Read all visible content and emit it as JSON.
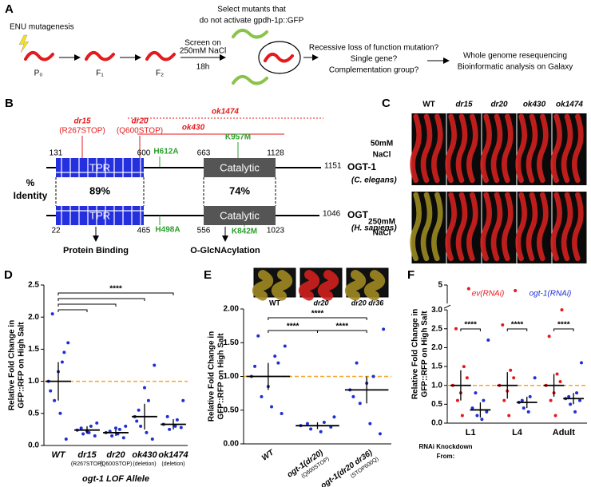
{
  "panel_a": {
    "label": "A",
    "mutagen": "ENU mutagenesis",
    "generations": [
      "P₀",
      "F₁",
      "F₂"
    ],
    "screen": [
      "Screen on",
      "250mM NaCl"
    ],
    "duration": "18h",
    "select": [
      "Select mutants that",
      "do not activate gpdh-1p::GFP"
    ],
    "questions": [
      "Recessive loss of function mutation?",
      "Single gene?",
      "Complementation group?"
    ],
    "analysis": [
      "Whole genome resequencing",
      "Bioinformatic analysis on Galaxy"
    ]
  },
  "panel_b": {
    "label": "B",
    "deletions": [
      "ok1474",
      "ok430"
    ],
    "point_alleles": [
      {
        "name": "dr15",
        "change": "(R267STOP)"
      },
      {
        "name": "dr20",
        "change": "(Q600STOP)"
      }
    ],
    "ce_mutations": [
      "H612A",
      "K957M"
    ],
    "hs_mutations": [
      "H498A",
      "K842M"
    ],
    "domains": [
      "TPR",
      "Catalytic"
    ],
    "ce_positions": [
      131,
      600,
      663,
      1128,
      1151
    ],
    "hs_positions": [
      22,
      465,
      556,
      1023,
      1046
    ],
    "ce_protein": {
      "name": "OGT-1",
      "species": "(C. elegans)"
    },
    "hs_protein": {
      "name": "OGT",
      "species": "(H. sapiens)"
    },
    "identity_label": [
      "%",
      "Identity"
    ],
    "identities": [
      "89%",
      "74%"
    ],
    "functions": [
      "Protein Binding",
      "O-GlcNAcylation"
    ]
  },
  "panel_c": {
    "label": "C",
    "columns": [
      "WT",
      "dr15",
      "dr20",
      "ok430",
      "ok1474"
    ],
    "rows": [
      [
        "50mM",
        "NaCl"
      ],
      [
        "250mM",
        "NaCl"
      ]
    ]
  },
  "chart_data": [
    {
      "type": "scatter",
      "panel_label": "D",
      "y_label": [
        "Relative Fold Change in",
        "GFP::RFP on High Salt"
      ],
      "x_label": "ogt-1 LOF Allele",
      "categories": [
        "WT",
        "dr15",
        "dr20",
        "ok430",
        "ok1474"
      ],
      "category_sublabels": [
        null,
        "(R267STOP)",
        "(Q600STOP)",
        "(deletion)",
        "(deletion)"
      ],
      "ylim": [
        0,
        2.5
      ],
      "yticks": [
        {
          "value": 0,
          "label": "0.0"
        },
        {
          "value": 0.5,
          "label": "0.5"
        },
        {
          "value": 1,
          "label": "1.0"
        },
        {
          "value": 1.5,
          "label": "1.5"
        },
        {
          "value": 2,
          "label": "2.0"
        },
        {
          "value": 2.5,
          "label": "2.5"
        }
      ],
      "reference_line": 1,
      "reference_color": "#f5a623",
      "significance_labels": [
        "****"
      ],
      "series": [
        {
          "color": "#1f2fd6",
          "groups": [
            {
              "points": [
                1.0,
                1.3,
                0.7,
                1.6,
                0.5,
                2.05,
                0.1,
                1.15,
                0.85,
                1.45
              ],
              "mean": 1.0,
              "sd": 0.3
            },
            {
              "points": [
                0.24,
                0.3,
                0.18,
                0.35,
                0.2,
                0.27,
                0.15,
                0.22
              ],
              "mean": 0.24,
              "sd": 0.06
            },
            {
              "points": [
                0.2,
                0.25,
                0.15,
                0.3,
                0.18,
                0.22,
                0.12,
                0.27
              ],
              "mean": 0.2,
              "sd": 0.05
            },
            {
              "points": [
                0.45,
                0.7,
                0.3,
                1.25,
                0.2,
                0.55,
                0.1,
                0.9,
                0.38
              ],
              "mean": 0.45,
              "sd": 0.2
            },
            {
              "points": [
                0.33,
                0.4,
                0.25,
                0.7,
                0.3,
                0.45,
                0.28
              ],
              "mean": 0.33,
              "sd": 0.08
            }
          ]
        }
      ]
    },
    {
      "type": "scatter",
      "panel_label": "E",
      "y_label": [
        "Relative Fold Change in",
        "GFP::RFP on High Salt"
      ],
      "inset_labels": [
        "WT",
        "dr20",
        "dr20 dr36"
      ],
      "categories": [
        "WT",
        "ogt-1(dr20)",
        "ogt-1(dr20 dr36)"
      ],
      "category_sublabels": [
        null,
        "(Q600STOP)",
        "(STOP600Q)"
      ],
      "ylim": [
        0,
        2
      ],
      "yticks": [
        {
          "value": 0,
          "label": "0.00"
        },
        {
          "value": 0.5,
          "label": "0.50"
        },
        {
          "value": 1,
          "label": "1.00"
        },
        {
          "value": 1.5,
          "label": "1.50"
        },
        {
          "value": 2,
          "label": "2.00"
        }
      ],
      "reference_line": 1,
      "reference_color": "#f5a623",
      "significance_labels": [
        "****",
        "****",
        "****"
      ],
      "series": [
        {
          "color": "#1f2fd6",
          "groups": [
            {
              "points": [
                1.0,
                1.3,
                0.7,
                1.45,
                0.55,
                1.6,
                0.45,
                0.85,
                1.15,
                1.2
              ],
              "mean": 1.0,
              "sd": 0.2
            },
            {
              "points": [
                0.27,
                0.32,
                0.22,
                0.4,
                0.18,
                0.3,
                0.25
              ],
              "mean": 0.27,
              "sd": 0.05
            },
            {
              "points": [
                0.8,
                1.0,
                0.6,
                1.7,
                0.3,
                1.2,
                0.15,
                0.9,
                0.7
              ],
              "mean": 0.8,
              "sd": 0.2
            }
          ]
        }
      ]
    },
    {
      "type": "scatter",
      "panel_label": "F",
      "y_label": [
        "Relative Fold Change in",
        "GFP::RFP on High Salt"
      ],
      "x_label": [
        "RNAi Knockdown",
        "From:"
      ],
      "categories": [
        "L1",
        "L4",
        "Adult"
      ],
      "ylim": [
        0,
        5
      ],
      "broken_axis": true,
      "yticks": [
        {
          "value": 0,
          "label": "0.0"
        },
        {
          "value": 0.5,
          "label": "0.5"
        },
        {
          "value": 1,
          "label": "1.0"
        },
        {
          "value": 1.5,
          "label": "1.5"
        },
        {
          "value": 2,
          "label": "2.0"
        },
        {
          "value": 2.5,
          "label": "2.5"
        },
        {
          "value": 3,
          "label": "3.0"
        },
        5
      ],
      "reference_line": 1,
      "reference_color": "#f5a623",
      "significance_labels": [
        "****",
        "****",
        "****"
      ],
      "series": [
        {
          "name": "ev(RNAi)",
          "color": "#e41a1c",
          "groups": [
            {
              "points": [
                1.0,
                1.5,
                0.6,
                4.6,
                0.2,
                2.5,
                1.2,
                0.8
              ],
              "mean": 1.0,
              "sd": 0.4
            },
            {
              "points": [
                1.0,
                1.4,
                0.6,
                4.4,
                0.2,
                2.6,
                1.2,
                0.85
              ],
              "mean": 1.0,
              "sd": 0.35
            },
            {
              "points": [
                1.0,
                1.3,
                0.6,
                3.0,
                0.2,
                2.3,
                1.1,
                0.8
              ],
              "mean": 1.0,
              "sd": 0.3
            }
          ]
        },
        {
          "name": "ogt-1(RNAi)",
          "color": "#1f2fd6",
          "groups": [
            {
              "points": [
                0.4,
                0.6,
                0.2,
                2.2,
                0.1,
                0.8,
                0.3
              ],
              "mean": 0.35,
              "sd": 0.2
            },
            {
              "points": [
                0.55,
                0.7,
                0.4,
                1.2,
                0.3,
                0.6
              ],
              "mean": 0.55,
              "sd": 0.15
            },
            {
              "points": [
                0.65,
                0.8,
                0.5,
                1.6,
                0.3,
                0.7,
                0.6
              ],
              "mean": 0.65,
              "sd": 0.15
            }
          ]
        }
      ]
    }
  ]
}
